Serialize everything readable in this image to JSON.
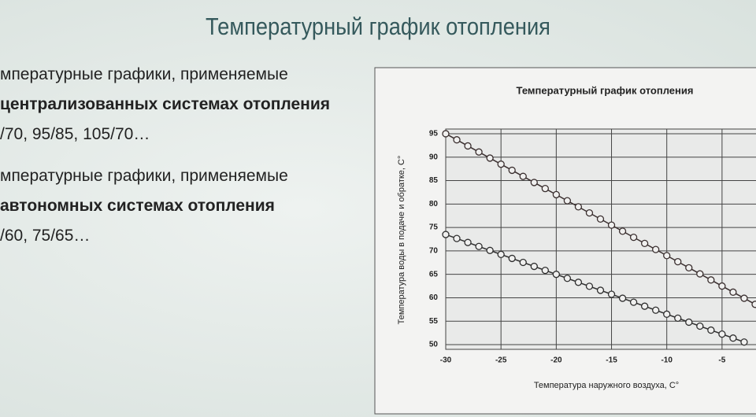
{
  "slide": {
    "title": "Температурный график отопления",
    "blocks": [
      {
        "lines": [
          "мпературные графики, применяемые",
          "централизованных системах отопления",
          "/70, 95/85, 105/70…"
        ]
      },
      {
        "lines": [
          "мпературные графики, применяемые",
          "автономных системах отопления",
          "/60, 75/65…"
        ]
      }
    ]
  },
  "chart_data": {
    "type": "line",
    "title": "Температурный график отопления",
    "x_label": "Температура наружного воздуха, С°",
    "y_label": "Температура воды в подаче и обратке, С°",
    "xlim": [
      -30,
      -1.5
    ],
    "xticks": [
      -30,
      -25,
      -20,
      -15,
      -10,
      -5
    ],
    "ylim": [
      49,
      96
    ],
    "yticks": [
      50,
      55,
      60,
      65,
      70,
      75,
      80,
      85,
      90,
      95
    ],
    "grid": true,
    "series": [
      {
        "color": "#3a2f2f",
        "x": [
          -30,
          -29,
          -28,
          -27,
          -26,
          -25,
          -24,
          -23,
          -22,
          -21,
          -20,
          -19,
          -18,
          -17,
          -16,
          -15,
          -14,
          -13,
          -12,
          -11,
          -10,
          -9,
          -8,
          -7,
          -6,
          -5,
          -4,
          -3,
          -2
        ],
        "values": [
          95,
          93.7,
          92.4,
          91.1,
          89.8,
          88.5,
          87.2,
          85.9,
          84.6,
          83.3,
          82,
          80.7,
          79.4,
          78.1,
          76.8,
          75.5,
          74.2,
          72.9,
          71.6,
          70.3,
          69,
          67.7,
          66.4,
          65.1,
          63.8,
          62.5,
          61.2,
          59.9,
          58.6
        ]
      },
      {
        "color": "#2f2f2f",
        "x": [
          -30,
          -29,
          -28,
          -27,
          -26,
          -25,
          -24,
          -23,
          -22,
          -21,
          -20,
          -19,
          -18,
          -17,
          -16,
          -15,
          -14,
          -13,
          -12,
          -11,
          -10,
          -9,
          -8,
          -7,
          -6,
          -5,
          -4,
          -3
        ],
        "values": [
          73.5,
          72.65,
          71.8,
          70.95,
          70.1,
          69.25,
          68.4,
          67.55,
          66.7,
          65.85,
          65,
          64.15,
          63.3,
          62.45,
          61.6,
          60.75,
          59.9,
          59.05,
          58.2,
          57.35,
          56.5,
          55.65,
          54.8,
          53.95,
          53.1,
          52.25,
          51.4,
          50.55
        ]
      }
    ]
  }
}
